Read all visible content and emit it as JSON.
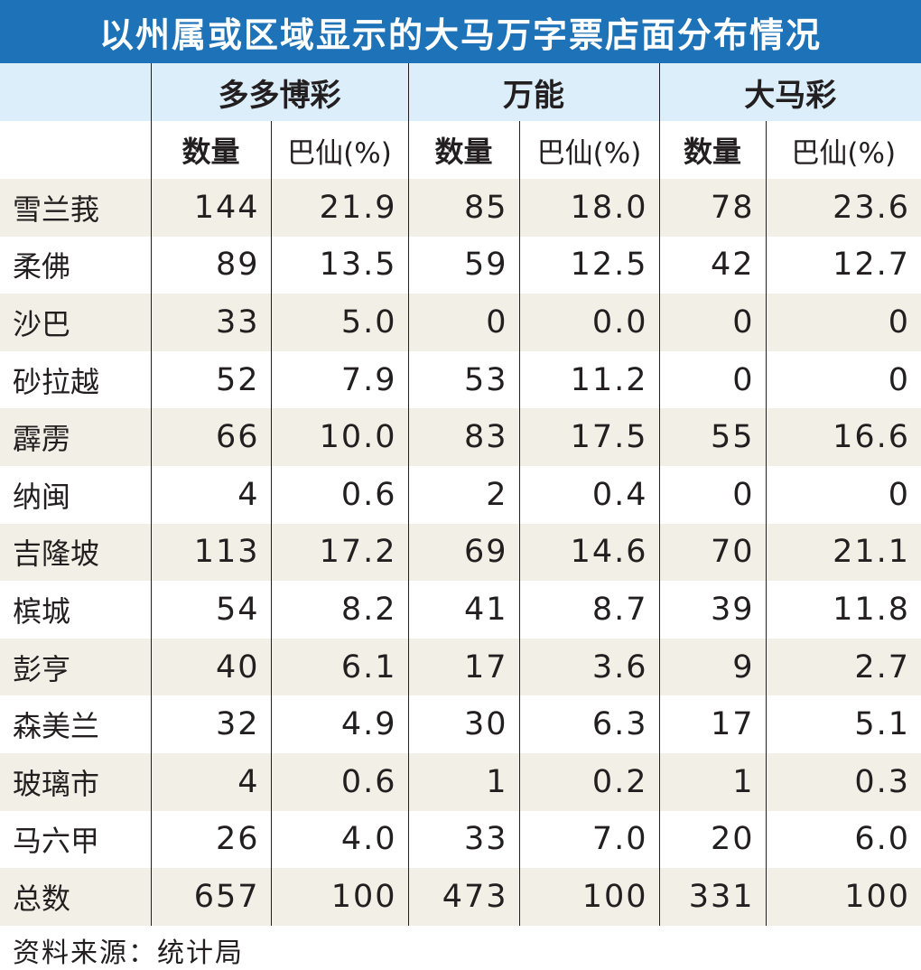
{
  "title": "以州属或区域显示的大马万字票店面分布情况",
  "groups": [
    "多多博彩",
    "万能",
    "大马彩"
  ],
  "subheaders": {
    "count": "数量",
    "pct": "巴仙(%)"
  },
  "rows": [
    {
      "state": "雪兰莪",
      "values": [
        "144",
        "21.9",
        "85",
        "18.0",
        "78",
        "23.6"
      ]
    },
    {
      "state": "柔佛",
      "values": [
        "89",
        "13.5",
        "59",
        "12.5",
        "42",
        "12.7"
      ]
    },
    {
      "state": "沙巴",
      "values": [
        "33",
        "5.0",
        "0",
        "0.0",
        "0",
        "0"
      ]
    },
    {
      "state": "砂拉越",
      "values": [
        "52",
        "7.9",
        "53",
        "11.2",
        "0",
        "0"
      ]
    },
    {
      "state": "霹雳",
      "values": [
        "66",
        "10.0",
        "83",
        "17.5",
        "55",
        "16.6"
      ]
    },
    {
      "state": "纳闽",
      "values": [
        "4",
        "0.6",
        "2",
        "0.4",
        "0",
        "0"
      ]
    },
    {
      "state": "吉隆坡",
      "values": [
        "113",
        "17.2",
        "69",
        "14.6",
        "70",
        "21.1"
      ]
    },
    {
      "state": "槟城",
      "values": [
        "54",
        "8.2",
        "41",
        "8.7",
        "39",
        "11.8"
      ]
    },
    {
      "state": "彭亨",
      "values": [
        "40",
        "6.1",
        "17",
        "3.6",
        "9",
        "2.7"
      ]
    },
    {
      "state": "森美兰",
      "values": [
        "32",
        "4.9",
        "30",
        "6.3",
        "17",
        "5.1"
      ]
    },
    {
      "state": "玻璃市",
      "values": [
        "4",
        "0.6",
        "1",
        "0.2",
        "1",
        "0.3"
      ]
    },
    {
      "state": "马六甲",
      "values": [
        "26",
        "4.0",
        "33",
        "7.0",
        "20",
        "6.0"
      ]
    },
    {
      "state": "总数",
      "values": [
        "657",
        "100",
        "473",
        "100",
        "331",
        "100"
      ]
    }
  ],
  "source": "资料来源：统计局",
  "colors": {
    "title_bg": "#1e73b8",
    "header_bg": "#dbeef9",
    "stripe": "#f2efe6"
  }
}
